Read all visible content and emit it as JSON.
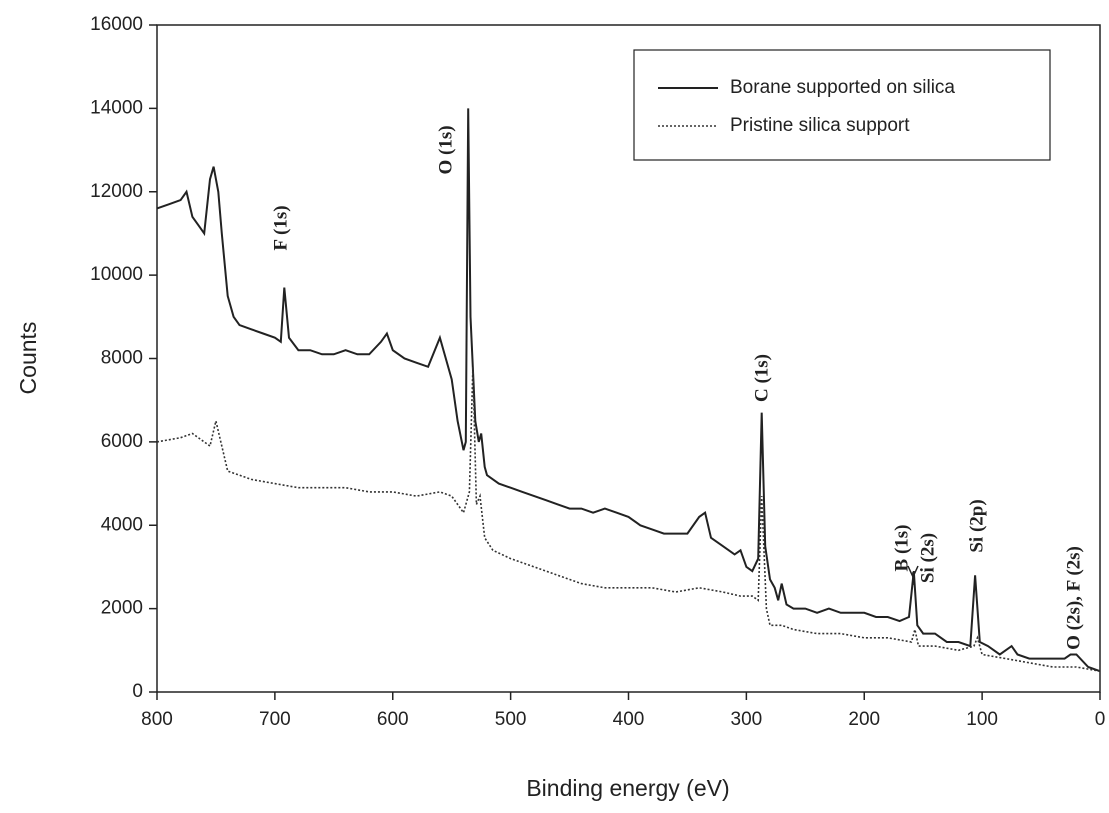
{
  "chart_data": {
    "type": "line",
    "x_label": "Binding energy (eV)",
    "y_label": "Counts",
    "xlim": [
      800,
      0
    ],
    "xticks": [
      800,
      700,
      600,
      500,
      400,
      300,
      200,
      100,
      0
    ],
    "ylim": [
      0,
      16000
    ],
    "yticks": [
      0,
      2000,
      4000,
      6000,
      8000,
      10000,
      12000,
      14000,
      16000
    ],
    "legend": "upper right",
    "series": [
      {
        "name": "Borane supported on silica",
        "color": "#222222",
        "dash": "solid",
        "x": [
          800,
          790,
          780,
          775,
          770,
          765,
          760,
          755,
          752,
          748,
          745,
          740,
          735,
          730,
          720,
          710,
          700,
          695,
          692,
          688,
          680,
          670,
          660,
          650,
          640,
          630,
          620,
          610,
          605,
          600,
          590,
          580,
          570,
          560,
          555,
          550,
          545,
          540,
          538,
          536,
          534,
          530,
          527,
          525,
          522,
          520,
          510,
          500,
          490,
          480,
          470,
          460,
          450,
          440,
          430,
          420,
          410,
          400,
          390,
          380,
          370,
          360,
          350,
          340,
          335,
          330,
          320,
          310,
          305,
          300,
          295,
          290,
          287,
          284,
          280,
          276,
          273,
          270,
          266,
          260,
          250,
          240,
          230,
          220,
          210,
          200,
          190,
          180,
          170,
          162,
          158,
          155,
          150,
          140,
          130,
          120,
          110,
          106,
          102,
          95,
          85,
          75,
          70,
          60,
          50,
          40,
          30,
          25,
          20,
          10,
          0
        ],
        "values": [
          11600,
          11700,
          11800,
          12000,
          11400,
          11200,
          11000,
          12300,
          12600,
          12000,
          11000,
          9500,
          9000,
          8800,
          8700,
          8600,
          8500,
          8400,
          9700,
          8500,
          8200,
          8200,
          8100,
          8100,
          8200,
          8100,
          8100,
          8400,
          8600,
          8200,
          8000,
          7900,
          7800,
          8500,
          8000,
          7500,
          6500,
          5800,
          6000,
          14000,
          9000,
          6500,
          6000,
          6200,
          5400,
          5200,
          5000,
          4900,
          4800,
          4700,
          4600,
          4500,
          4400,
          4400,
          4300,
          4400,
          4300,
          4200,
          4000,
          3900,
          3800,
          3800,
          3800,
          4200,
          4300,
          3700,
          3500,
          3300,
          3400,
          3000,
          2900,
          3200,
          6700,
          3500,
          2700,
          2500,
          2200,
          2600,
          2100,
          2000,
          2000,
          1900,
          2000,
          1900,
          1900,
          1900,
          1800,
          1800,
          1700,
          1800,
          2900,
          1600,
          1400,
          1400,
          1200,
          1200,
          1100,
          2800,
          1200,
          1100,
          900,
          1100,
          900,
          800,
          800,
          800,
          800,
          900,
          900,
          600,
          500
        ]
      },
      {
        "name": "Pristine silica support",
        "color": "#333333",
        "dash": "dotted",
        "x": [
          800,
          780,
          770,
          760,
          755,
          750,
          745,
          740,
          730,
          720,
          700,
          680,
          660,
          640,
          620,
          600,
          580,
          560,
          550,
          545,
          540,
          535,
          532,
          529,
          526,
          522,
          515,
          500,
          480,
          460,
          440,
          420,
          400,
          380,
          360,
          340,
          320,
          305,
          295,
          290,
          287,
          283,
          280,
          270,
          260,
          240,
          220,
          200,
          180,
          160,
          157,
          154,
          140,
          120,
          107,
          104,
          100,
          80,
          60,
          40,
          20,
          0
        ],
        "values": [
          6000,
          6100,
          6200,
          6000,
          5900,
          6500,
          5900,
          5300,
          5200,
          5100,
          5000,
          4900,
          4900,
          4900,
          4800,
          4800,
          4700,
          4800,
          4700,
          4500,
          4300,
          4800,
          7800,
          4500,
          4700,
          3700,
          3400,
          3200,
          3000,
          2800,
          2600,
          2500,
          2500,
          2500,
          2400,
          2500,
          2400,
          2300,
          2300,
          2200,
          4700,
          2000,
          1600,
          1600,
          1500,
          1400,
          1400,
          1300,
          1300,
          1200,
          1500,
          1100,
          1100,
          1000,
          1100,
          1300,
          900,
          800,
          700,
          600,
          600,
          500
        ]
      }
    ],
    "annotations": [
      "O (1s)",
      "F (1s)",
      "C (1s)",
      "B (1s)",
      "Si (2s)",
      "Si (2p)",
      "O (2s), F (2s)"
    ]
  }
}
